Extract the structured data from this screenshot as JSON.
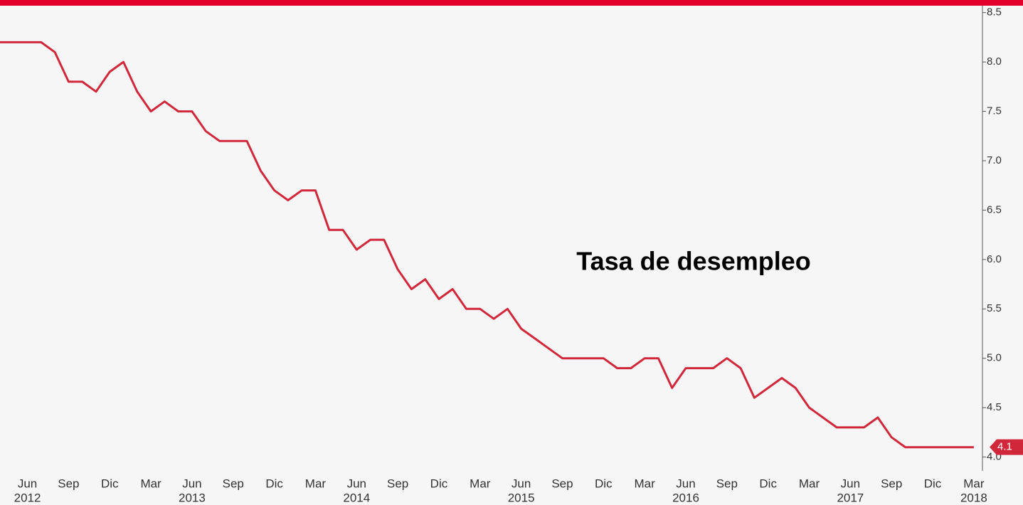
{
  "chart_data": {
    "type": "line",
    "annotation": "Tasa de desempleo",
    "color": "#d0283a",
    "categories": [
      null,
      null,
      "Jun",
      null,
      null,
      "Sep",
      null,
      null,
      "Dic",
      null,
      null,
      "Mar",
      null,
      null,
      "Jun",
      null,
      null,
      "Sep",
      null,
      null,
      "Dic",
      null,
      null,
      "Mar",
      null,
      null,
      "Jun",
      null,
      null,
      "Sep",
      null,
      null,
      "Dic",
      null,
      null,
      "Mar",
      null,
      null,
      "Jun",
      null,
      null,
      "Sep",
      null,
      null,
      "Dic",
      null,
      null,
      "Mar",
      null,
      null,
      "Jun",
      null,
      null,
      "Sep",
      null,
      null,
      "Dic",
      null,
      null,
      "Mar",
      null,
      null,
      "Jun",
      null,
      null,
      "Sep",
      null,
      null,
      "Dic",
      null,
      null,
      "Mar"
    ],
    "category_years": [
      null,
      null,
      "2012",
      null,
      null,
      null,
      null,
      null,
      null,
      null,
      null,
      null,
      null,
      null,
      "2013",
      null,
      null,
      null,
      null,
      null,
      null,
      null,
      null,
      null,
      null,
      null,
      "2014",
      null,
      null,
      null,
      null,
      null,
      null,
      null,
      null,
      null,
      null,
      null,
      "2015",
      null,
      null,
      null,
      null,
      null,
      null,
      null,
      null,
      null,
      null,
      null,
      "2016",
      null,
      null,
      null,
      null,
      null,
      null,
      null,
      null,
      null,
      null,
      null,
      "2017",
      null,
      null,
      null,
      null,
      null,
      null,
      null,
      null,
      "2018"
    ],
    "values": [
      8.2,
      8.2,
      8.2,
      8.2,
      8.1,
      7.8,
      7.8,
      7.7,
      7.9,
      8.0,
      7.7,
      7.5,
      7.6,
      7.5,
      7.5,
      7.3,
      7.2,
      7.2,
      7.2,
      6.9,
      6.7,
      6.6,
      6.7,
      6.7,
      6.3,
      6.3,
      6.1,
      6.2,
      6.2,
      5.9,
      5.7,
      5.8,
      5.6,
      5.7,
      5.5,
      5.5,
      5.4,
      5.5,
      5.3,
      5.2,
      5.1,
      5.0,
      5.0,
      5.0,
      5.0,
      4.9,
      4.9,
      5.0,
      5.0,
      4.7,
      4.9,
      4.9,
      4.9,
      5.0,
      4.9,
      4.6,
      4.7,
      4.8,
      4.7,
      4.5,
      4.4,
      4.3,
      4.3,
      4.3,
      4.4,
      4.2,
      4.1,
      4.1,
      4.1,
      4.1,
      4.1,
      4.1
    ],
    "ylim": [
      3.86,
      8.57
    ],
    "yticks": [
      {
        "value": 4,
        "label": "4.0"
      },
      4.5,
      {
        "value": 5,
        "label": "5.0"
      },
      5.5,
      {
        "value": 6,
        "label": "6.0"
      },
      6.5,
      {
        "value": 7,
        "label": "7.0"
      },
      7.5,
      {
        "value": 8,
        "label": "8.0"
      },
      8.5
    ]
  }
}
